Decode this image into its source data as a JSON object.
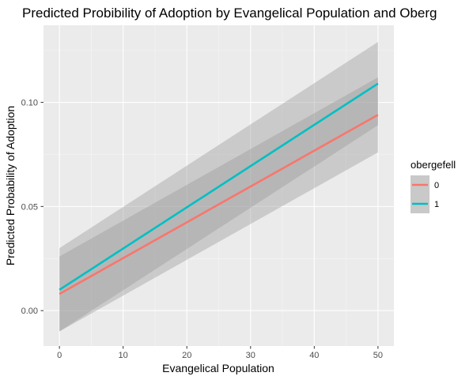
{
  "chart_data": {
    "type": "line",
    "title": "Predicted Probibility of Adoption by Evangelical Population and Oberg",
    "xlabel": "Evangelical Population",
    "ylabel": "Predicted Probability of Adoption",
    "xlim": [
      -2.5,
      52.5
    ],
    "ylim": [
      -0.017,
      0.137
    ],
    "x_ticks": [
      0,
      10,
      20,
      30,
      40,
      50
    ],
    "x_tick_labels": [
      "0",
      "10",
      "20",
      "30",
      "40",
      "50"
    ],
    "y_ticks": [
      0.0,
      0.05,
      0.1
    ],
    "y_tick_labels": [
      "0.00",
      "0.05",
      "0.10"
    ],
    "grid": true,
    "legend": {
      "title": "obergefell",
      "position": "right"
    },
    "series": [
      {
        "name": "0",
        "color": "#F8766D",
        "x": [
          0,
          50
        ],
        "y": [
          0.008,
          0.094
        ],
        "ci_lower": [
          -0.01,
          0.076
        ],
        "ci_upper": [
          0.026,
          0.112
        ]
      },
      {
        "name": "1",
        "color": "#00BFC4",
        "x": [
          0,
          50
        ],
        "y": [
          0.01,
          0.109
        ],
        "ci_lower": [
          -0.01,
          0.089
        ],
        "ci_upper": [
          0.03,
          0.129
        ]
      }
    ]
  }
}
